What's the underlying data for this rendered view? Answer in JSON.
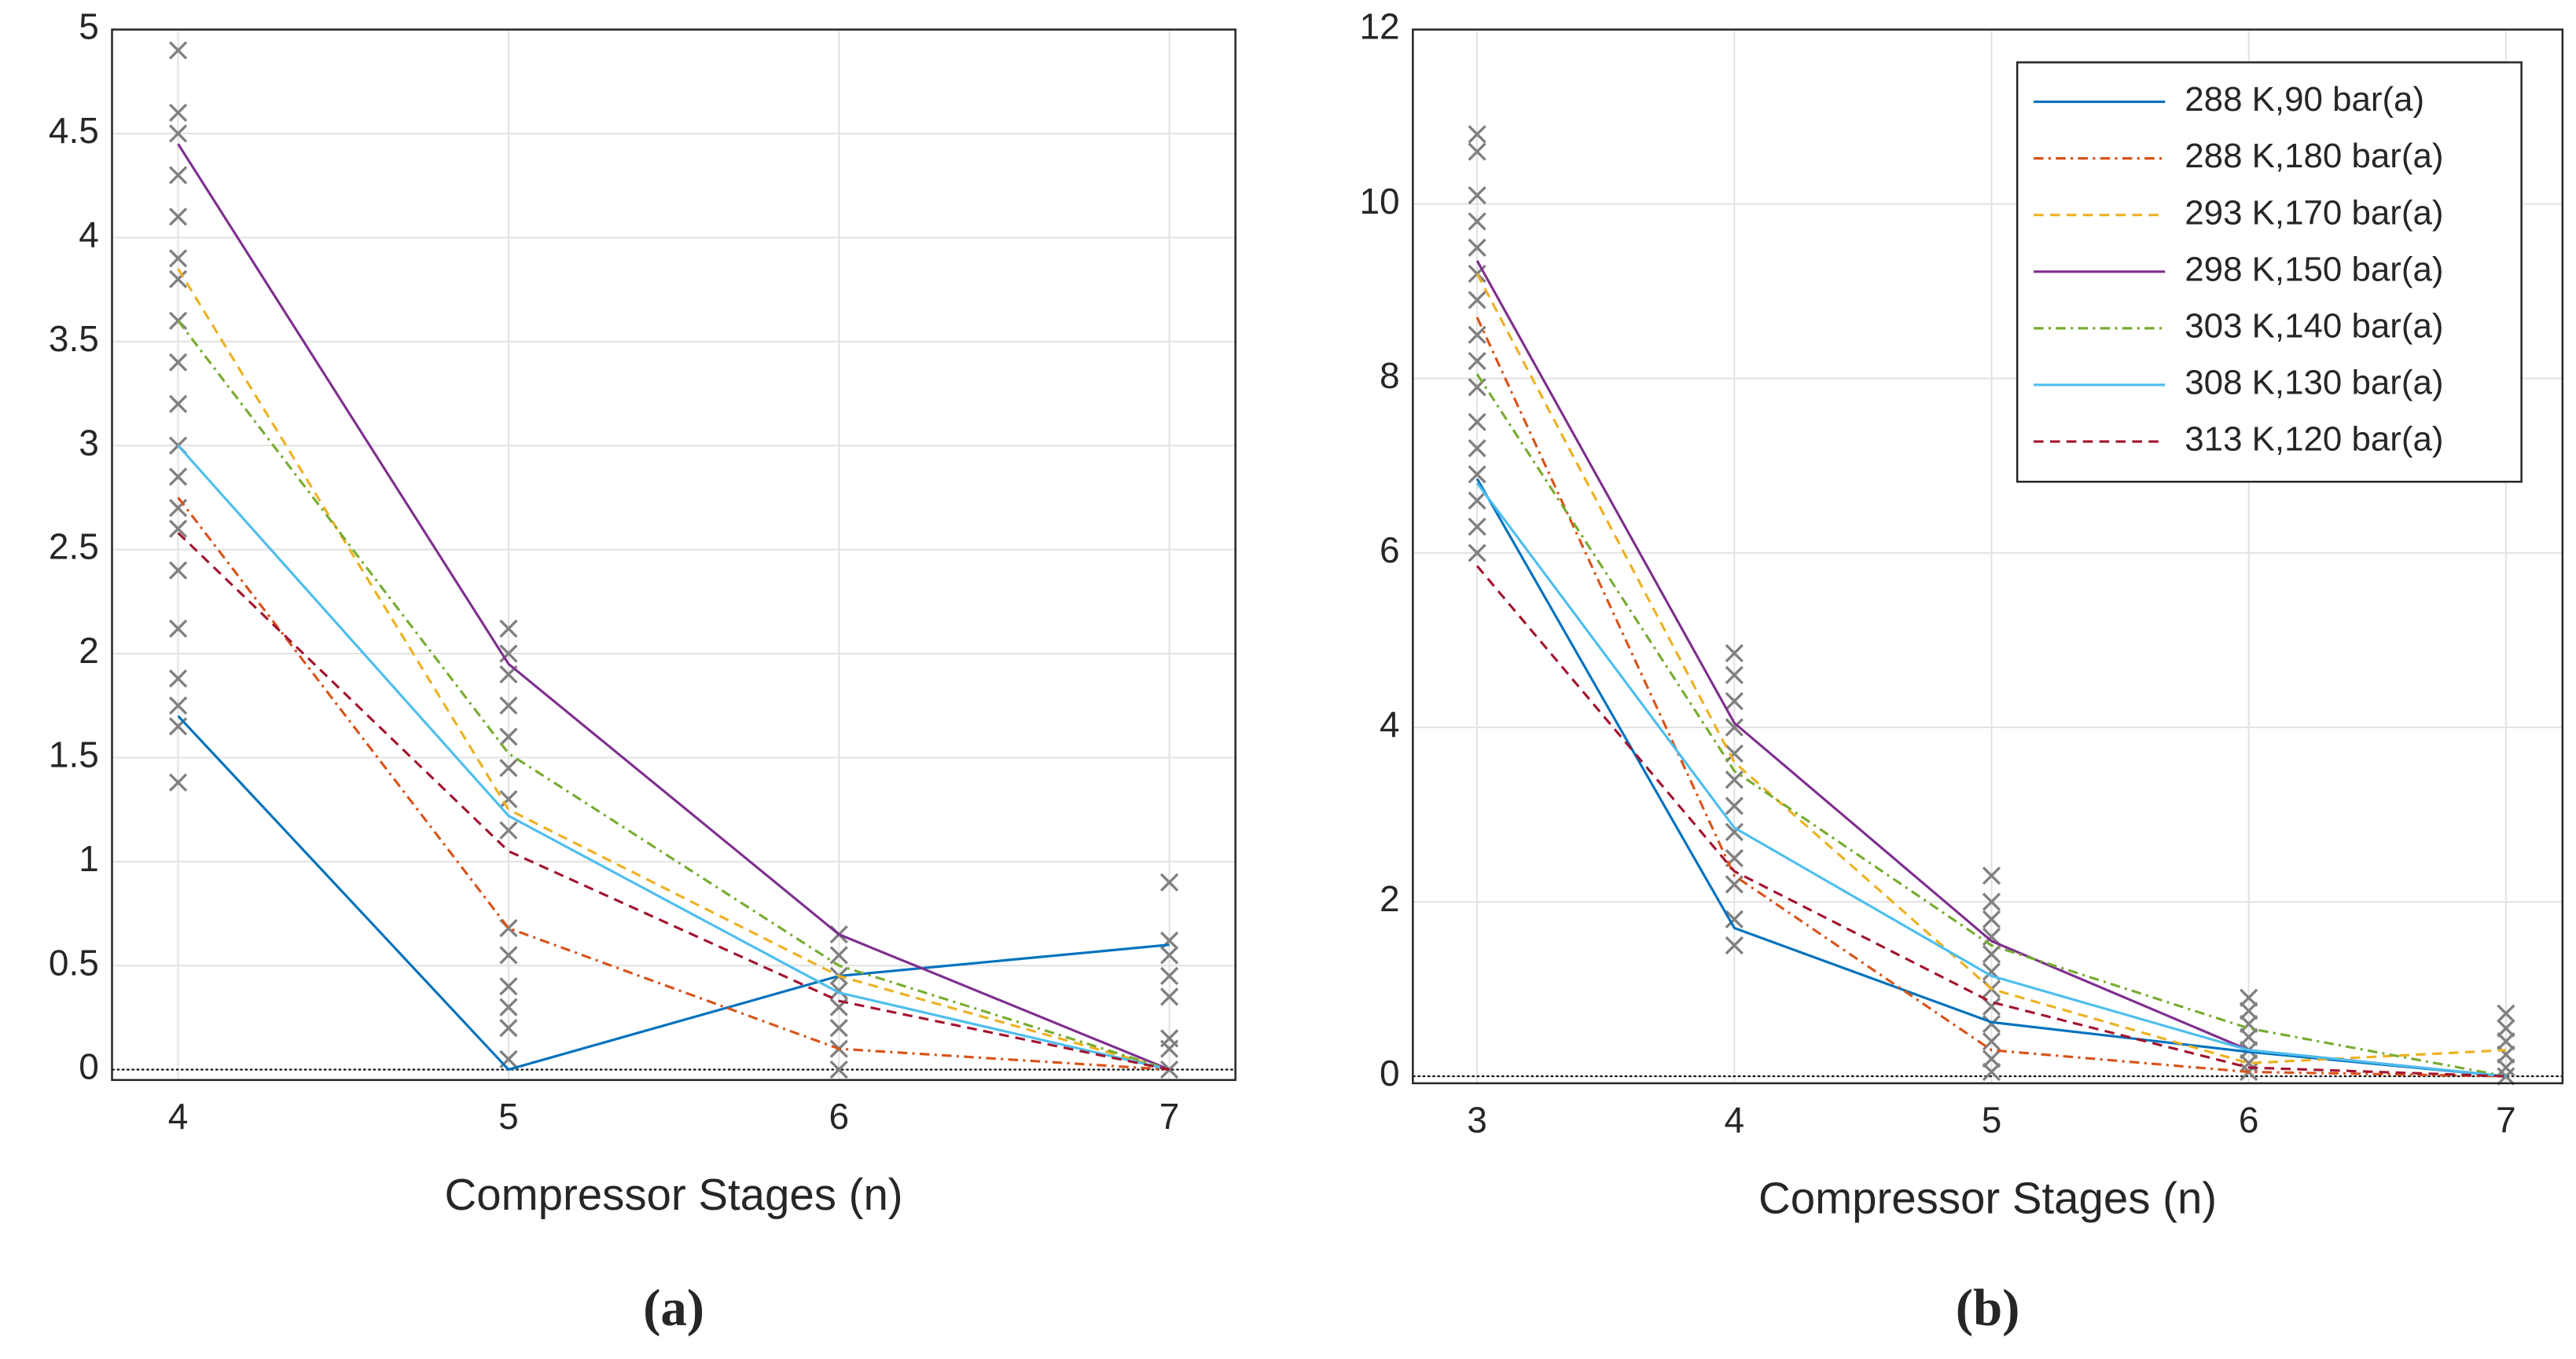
{
  "chart_data": [
    {
      "type": "line",
      "xlabel": "Compressor Stages (n)",
      "caption": "(a)",
      "xlim": [
        3.8,
        7.2
      ],
      "ylim": [
        -0.05,
        5
      ],
      "xticks": [
        4,
        5,
        6,
        7
      ],
      "yticks": [
        0,
        0.5,
        1,
        1.5,
        2,
        2.5,
        3,
        3.5,
        4,
        4.5,
        5
      ],
      "grid": true,
      "x": [
        4,
        5,
        6,
        7
      ],
      "series": [
        {
          "color": "#0072bd",
          "linestyle": "solid",
          "values": [
            1.7,
            0.0,
            0.45,
            0.6
          ]
        },
        {
          "color": "#d95319",
          "linestyle": "dashdot",
          "values": [
            2.75,
            0.68,
            0.1,
            0.0
          ]
        },
        {
          "color": "#edb120",
          "linestyle": "dashed",
          "values": [
            3.85,
            1.25,
            0.45,
            0.0
          ]
        },
        {
          "color": "#7e2f8e",
          "linestyle": "solid",
          "values": [
            4.45,
            1.95,
            0.65,
            0.0
          ]
        },
        {
          "color": "#77ac30",
          "linestyle": "dashdot",
          "values": [
            3.6,
            1.52,
            0.5,
            0.0
          ]
        },
        {
          "color": "#4dbeee",
          "linestyle": "solid",
          "values": [
            3.0,
            1.22,
            0.37,
            0.0
          ]
        },
        {
          "color": "#a2142f",
          "linestyle": "dashed",
          "values": [
            2.58,
            1.05,
            0.33,
            0.0
          ]
        }
      ],
      "scatter": {
        "color": "#808080",
        "x": [
          4,
          4,
          4,
          4,
          4,
          4,
          4,
          4,
          4,
          4,
          4,
          4,
          4,
          4,
          4,
          4,
          4,
          4,
          4,
          4,
          5,
          5,
          5,
          5,
          5,
          5,
          5,
          5,
          5,
          5,
          5,
          5,
          5,
          5,
          6,
          6,
          6,
          6,
          6,
          6,
          6,
          6,
          7,
          7,
          7,
          7,
          7,
          7,
          7,
          7
        ],
        "y": [
          4.9,
          4.6,
          4.5,
          4.3,
          4.1,
          3.9,
          3.8,
          3.6,
          3.4,
          3.2,
          3.0,
          2.85,
          2.7,
          2.6,
          2.4,
          2.12,
          1.88,
          1.75,
          1.65,
          1.38,
          2.12,
          2.0,
          1.9,
          1.75,
          1.6,
          1.45,
          1.3,
          1.15,
          0.68,
          0.55,
          0.4,
          0.3,
          0.2,
          0.05,
          0.65,
          0.55,
          0.45,
          0.38,
          0.3,
          0.2,
          0.1,
          0.0,
          0.9,
          0.62,
          0.55,
          0.45,
          0.35,
          0.15,
          0.1,
          0.0
        ]
      }
    },
    {
      "type": "line",
      "xlabel": "Compressor Stages (n)",
      "caption": "(b)",
      "xlim": [
        2.75,
        7.22
      ],
      "ylim": [
        -0.08,
        12
      ],
      "xticks": [
        3,
        4,
        5,
        6,
        7
      ],
      "yticks": [
        0,
        2,
        4,
        6,
        8,
        10,
        12
      ],
      "grid": true,
      "legend": "northeast",
      "x": [
        3,
        4,
        5,
        6,
        7
      ],
      "series": [
        {
          "name": "288 K,90 bar(a)",
          "color": "#0072bd",
          "linestyle": "solid",
          "values": [
            6.85,
            1.7,
            0.62,
            0.28,
            0.0
          ]
        },
        {
          "name": "288 K,180 bar(a)",
          "color": "#d95319",
          "linestyle": "dashdot",
          "values": [
            8.7,
            2.3,
            0.3,
            0.05,
            0.0
          ]
        },
        {
          "name": "293 K,170 bar(a)",
          "color": "#edb120",
          "linestyle": "dashed",
          "values": [
            9.2,
            3.6,
            1.0,
            0.15,
            0.3
          ]
        },
        {
          "name": "298 K,150 bar(a)",
          "color": "#7e2f8e",
          "linestyle": "solid",
          "values": [
            9.35,
            4.05,
            1.55,
            0.3,
            0.0
          ]
        },
        {
          "name": "303 K,140 bar(a)",
          "color": "#77ac30",
          "linestyle": "dashdot",
          "values": [
            8.05,
            3.5,
            1.5,
            0.55,
            0.0
          ]
        },
        {
          "name": "308 K,130 bar(a)",
          "color": "#4dbeee",
          "linestyle": "solid",
          "values": [
            6.8,
            2.85,
            1.15,
            0.3,
            0.0
          ]
        },
        {
          "name": "313 K,120 bar(a)",
          "color": "#a2142f",
          "linestyle": "dashed",
          "values": [
            5.85,
            2.35,
            0.85,
            0.1,
            0.0
          ]
        }
      ],
      "scatter": {
        "color": "#808080",
        "x": [
          3,
          3,
          3,
          3,
          3,
          3,
          3,
          3,
          3,
          3,
          3,
          3,
          3,
          3,
          3,
          3,
          4,
          4,
          4,
          4,
          4,
          4,
          4,
          4,
          4,
          4,
          4,
          4,
          5,
          5,
          5,
          5,
          5,
          5,
          5,
          5,
          5,
          5,
          5,
          5,
          6,
          6,
          6,
          6,
          6,
          6,
          6,
          7,
          7,
          7,
          7,
          7,
          7
        ],
        "y": [
          10.8,
          10.6,
          10.1,
          9.8,
          9.5,
          9.2,
          8.9,
          8.5,
          8.2,
          7.9,
          7.5,
          7.2,
          6.9,
          6.6,
          6.3,
          6.0,
          4.85,
          4.6,
          4.3,
          4.0,
          3.7,
          3.4,
          3.1,
          2.8,
          2.5,
          2.2,
          1.8,
          1.5,
          2.3,
          2.0,
          1.8,
          1.6,
          1.4,
          1.2,
          1.0,
          0.8,
          0.6,
          0.4,
          0.2,
          0.05,
          0.9,
          0.75,
          0.6,
          0.45,
          0.3,
          0.15,
          0.05,
          0.72,
          0.55,
          0.4,
          0.25,
          0.1,
          0.0
        ]
      }
    }
  ]
}
